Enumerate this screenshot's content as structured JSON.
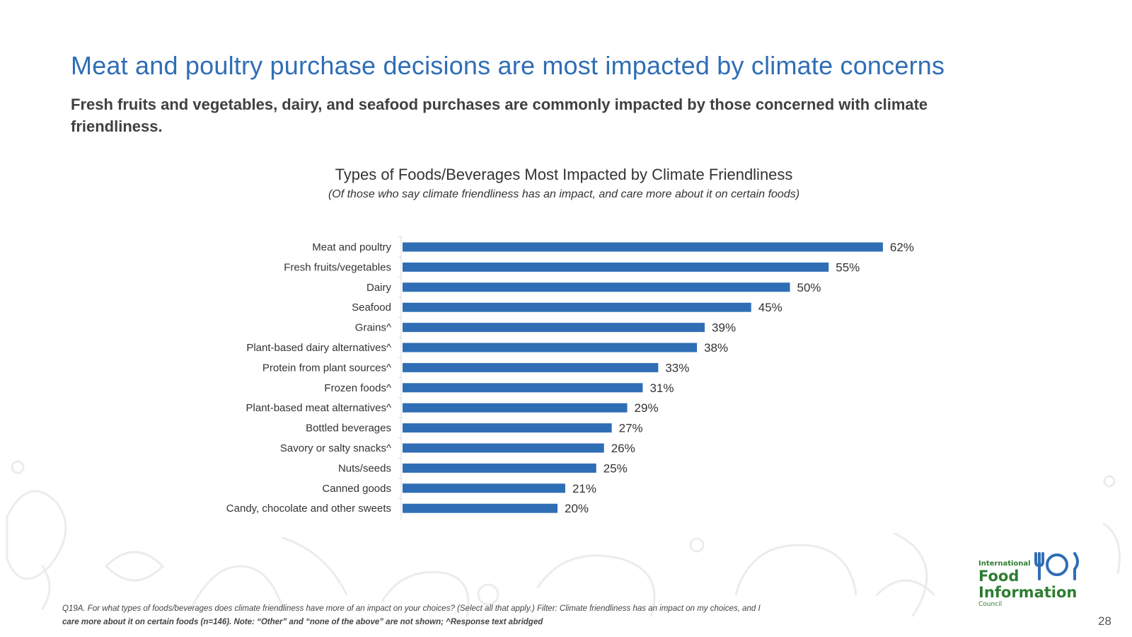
{
  "slide": {
    "headline": "Meat and poultry purchase decisions are most impacted by climate concerns",
    "subtitle": "Fresh fruits and vegetables, dairy, and seafood purchases are commonly impacted by those concerned with climate friendliness.",
    "footnote_line1": "Q19A. For what types of foods/beverages does climate friendliness have more of an impact on your choices? (Select all that apply.) Filter: Climate friendliness has an impact on my choices, and I",
    "footnote_line2": "care more about it on certain foods (n=146). Note: “Other” and “none of the above” are not shown; ^Response text abridged",
    "page_number": "28"
  },
  "logo": {
    "line1": "International",
    "line2": "Food",
    "line3": "Information",
    "line4": "Council",
    "color": "#2e7d32",
    "icon_color": "#2f6eb5"
  },
  "chart_data": {
    "type": "bar",
    "orientation": "horizontal",
    "title": "Types of Foods/Beverages Most Impacted by Climate Friendliness",
    "subtitle": "(Of those who say climate friendliness has an impact, and care more about it on certain foods)",
    "categories": [
      "Meat and poultry",
      "Fresh fruits/vegetables",
      "Dairy",
      "Seafood",
      "Grains^",
      "Plant-based dairy alternatives^",
      "Protein from plant sources^",
      "Frozen foods^",
      "Plant-based meat alternatives^",
      "Bottled beverages",
      "Savory or salty snacks^",
      "Nuts/seeds",
      "Canned goods",
      "Candy, chocolate and other sweets"
    ],
    "values": [
      62,
      55,
      50,
      45,
      39,
      38,
      33,
      31,
      29,
      27,
      26,
      25,
      21,
      20
    ],
    "labels": [
      "62%",
      "55%",
      "50%",
      "45%",
      "39%",
      "38%",
      "33%",
      "31%",
      "29%",
      "27%",
      "26%",
      "25%",
      "21%",
      "20%"
    ],
    "xlim": [
      0,
      70
    ],
    "bar_color": "#2f6eb5",
    "grid": false,
    "legend": "none"
  }
}
